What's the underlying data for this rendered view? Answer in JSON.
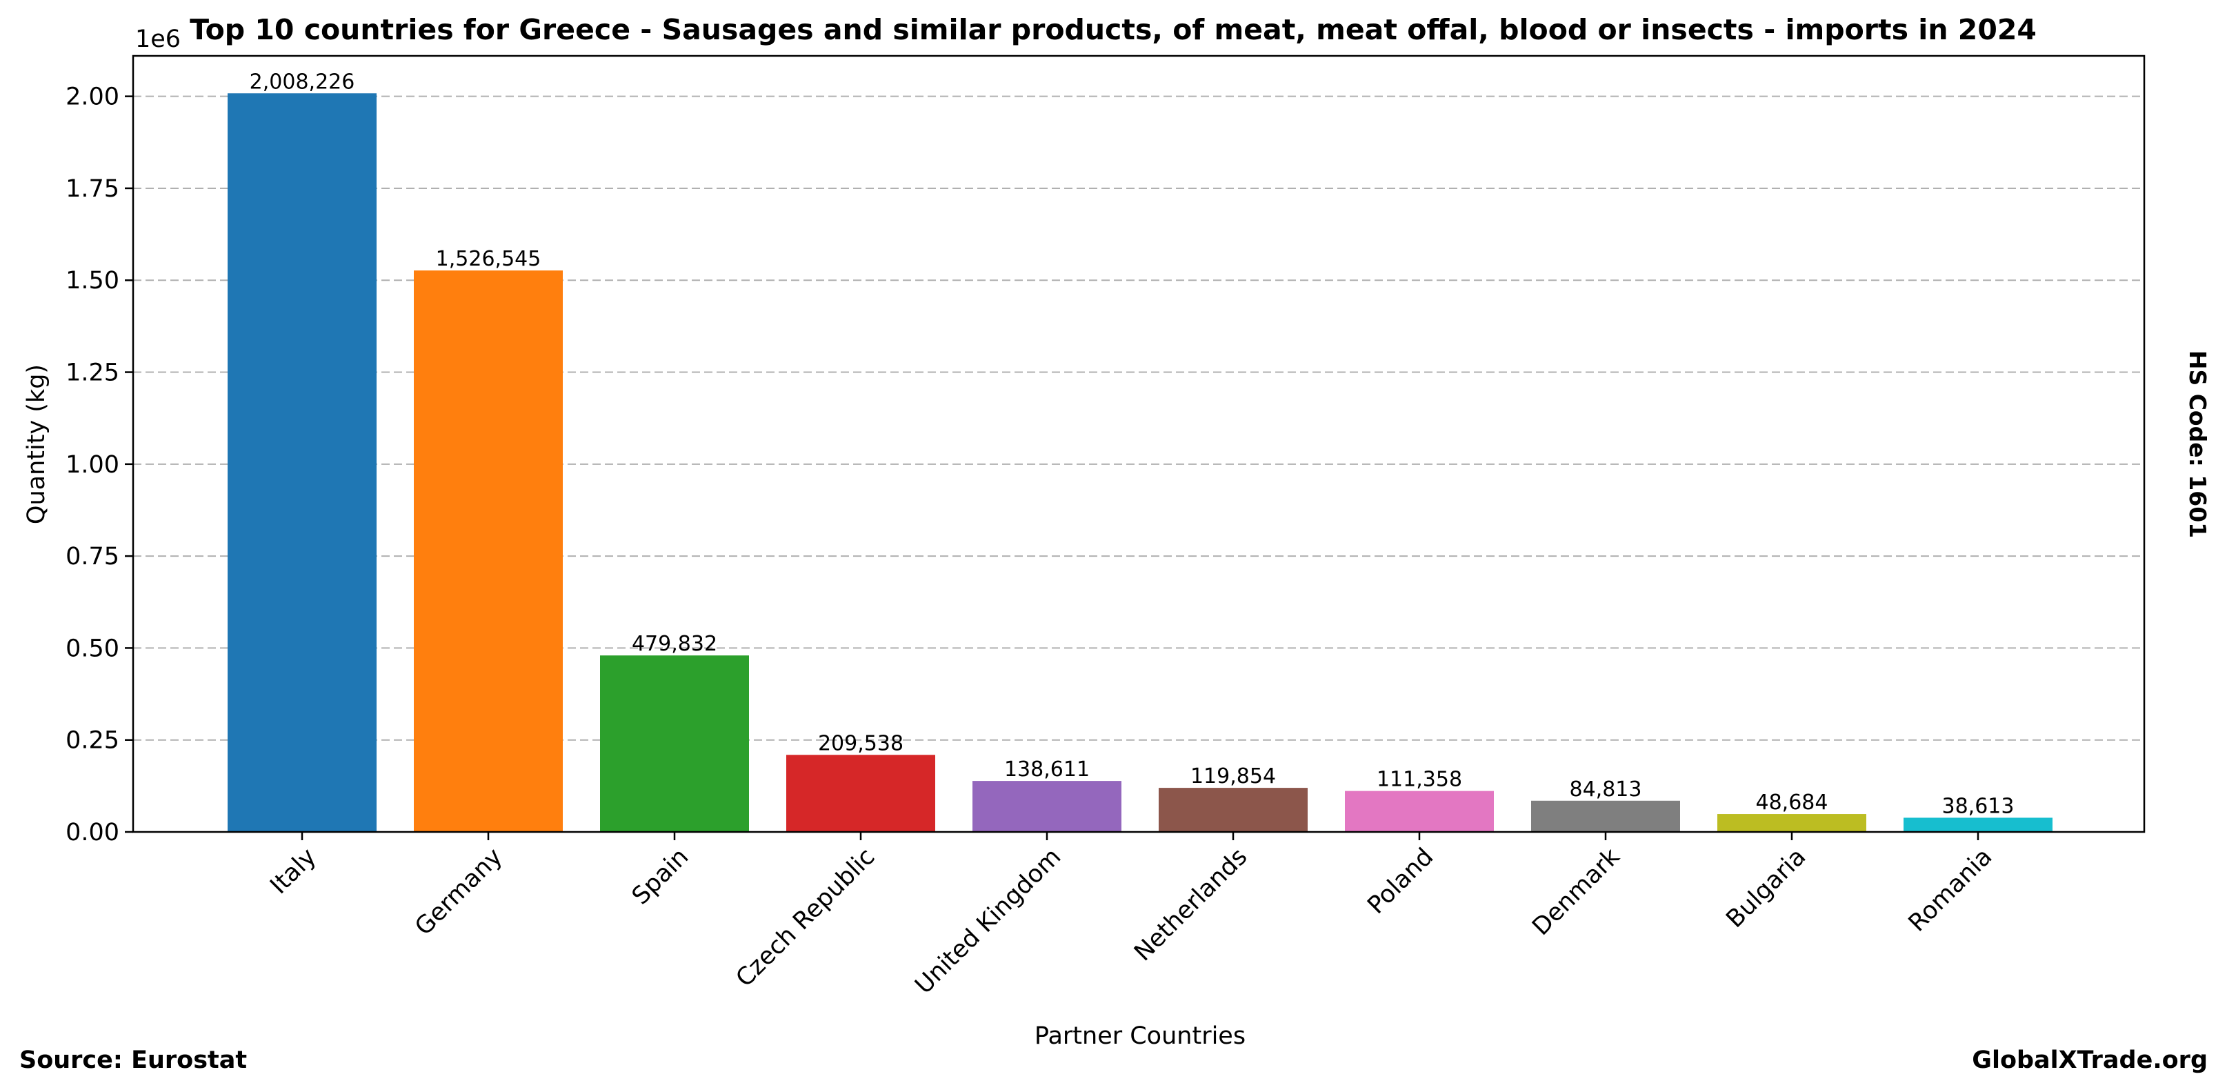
{
  "chart_data": {
    "type": "bar",
    "title": "Top 10 countries for Greece - Sausages and similar products, of meat, meat offal, blood or insects - imports in 2024",
    "xlabel": "Partner Countries",
    "ylabel": "Quantity (kg)",
    "y_scale_label": "1e6",
    "categories": [
      "Italy",
      "Germany",
      "Spain",
      "Czech Republic",
      "United Kingdom",
      "Netherlands",
      "Poland",
      "Denmark",
      "Bulgaria",
      "Romania"
    ],
    "values": [
      2008226,
      1526545,
      479832,
      209538,
      138611,
      119854,
      111358,
      84813,
      48684,
      38613
    ],
    "value_labels": [
      "2,008,226",
      "1,526,545",
      "479,832",
      "209,538",
      "138,611",
      "119,854",
      "111,358",
      "84,813",
      "48,684",
      "38,613"
    ],
    "colors": [
      "#1f77b4",
      "#ff7f0e",
      "#2ca02c",
      "#d62728",
      "#9467bd",
      "#8c564b",
      "#e377c2",
      "#7f7f7f",
      "#bcbd22",
      "#17becf"
    ],
    "ylim": [
      0,
      2110000
    ],
    "y_ticks": [
      0,
      250000,
      500000,
      750000,
      1000000,
      1250000,
      1500000,
      1750000,
      2000000
    ],
    "y_tick_labels": [
      "0.00",
      "0.25",
      "0.50",
      "0.75",
      "1.00",
      "1.25",
      "1.50",
      "1.75",
      "2.00"
    ],
    "grid": "y-dashed",
    "legend": "none"
  },
  "footer": {
    "source": "Source: Eurostat",
    "brand": "GlobalXTrade.org"
  },
  "side_note": "HS Code: 1601"
}
